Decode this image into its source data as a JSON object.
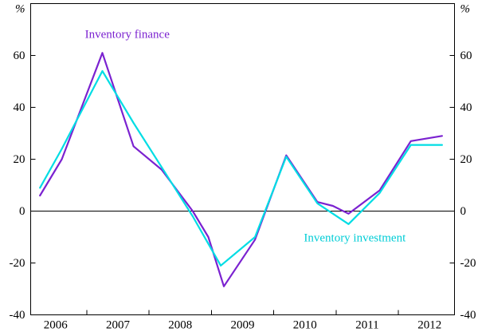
{
  "chart_data": {
    "type": "line",
    "title": "",
    "y_unit": "%",
    "ylim": [
      -40,
      80
    ],
    "yticks": [
      -40,
      -20,
      0,
      20,
      40,
      60
    ],
    "xlim": [
      2005.6,
      2012.4
    ],
    "xtick_years": [
      "2006",
      "2007",
      "2008",
      "2009",
      "2010",
      "2011",
      "2012"
    ],
    "xtick_year_positions": [
      2006,
      2007,
      2008,
      2009,
      2010,
      2011,
      2012
    ],
    "x_minor_ticks": [
      2006.5,
      2007.5,
      2008.5,
      2009.5,
      2010.5,
      2011.5
    ],
    "grid": false,
    "zero_line": true,
    "frame": true,
    "axis_color": "#000000",
    "series": [
      {
        "name": "Inventory finance",
        "color": "#7B22D0",
        "x": [
          2005.75,
          2006.1,
          2006.75,
          2007.25,
          2007.7,
          2008.2,
          2008.45,
          2008.7,
          2009.2,
          2009.7,
          2010.2,
          2010.45,
          2010.7,
          2011.2,
          2011.7,
          2012.2
        ],
        "values": [
          6,
          20,
          61,
          25,
          16,
          0,
          -10,
          -29,
          -11,
          21.5,
          3.5,
          2,
          -1,
          8,
          27,
          29
        ]
      },
      {
        "name": "Inventory investment",
        "color": "#00DDE4",
        "x": [
          2005.75,
          2006.1,
          2006.75,
          2007.25,
          2007.7,
          2008.2,
          2008.65,
          2009.2,
          2009.7,
          2010.2,
          2010.7,
          2011.2,
          2011.7,
          2012.2
        ],
        "values": [
          9,
          24,
          54,
          34,
          17,
          -2,
          -21,
          -10,
          21,
          3,
          -5,
          7,
          25.5,
          25.5
        ]
      }
    ],
    "annotations": [
      {
        "text": "Inventory finance",
        "x": 2007.15,
        "y": 68,
        "color": "#7B22D0"
      },
      {
        "text": "Inventory investment",
        "x": 2010.8,
        "y": -10.5,
        "color": "#00CDD6"
      }
    ]
  }
}
